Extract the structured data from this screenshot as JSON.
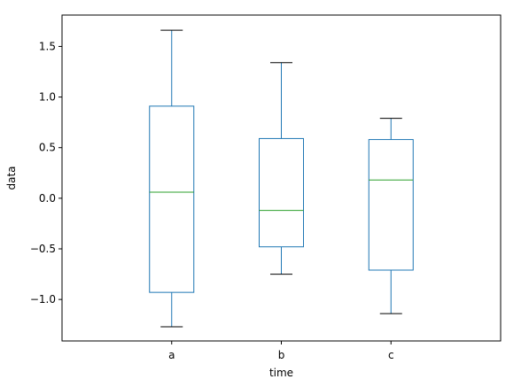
{
  "chart_data": {
    "type": "box",
    "xlabel": "time",
    "ylabel": "data",
    "ylim": [
      -1.41,
      1.81
    ],
    "yticks": [
      -1.0,
      -0.5,
      0.0,
      0.5,
      1.0,
      1.5
    ],
    "ytick_labels": [
      "−1.0",
      "−0.5",
      "0.0",
      "0.5",
      "1.0",
      "1.5"
    ],
    "categories": [
      "a",
      "b",
      "c"
    ],
    "boxes": [
      {
        "category": "a",
        "whisker_low": -1.27,
        "q1": -0.93,
        "median": 0.06,
        "q3": 0.91,
        "whisker_high": 1.66
      },
      {
        "category": "b",
        "whisker_low": -0.75,
        "q1": -0.48,
        "median": -0.12,
        "q3": 0.59,
        "whisker_high": 1.34
      },
      {
        "category": "c",
        "whisker_low": -1.14,
        "q1": -0.71,
        "median": 0.18,
        "q3": 0.58,
        "whisker_high": 0.79
      }
    ],
    "grid": false,
    "legend": "none",
    "colors": {
      "box": "#1f77b4",
      "median": "#2ca02c",
      "whisker_cap": "#000000",
      "axes": "#000000"
    }
  }
}
